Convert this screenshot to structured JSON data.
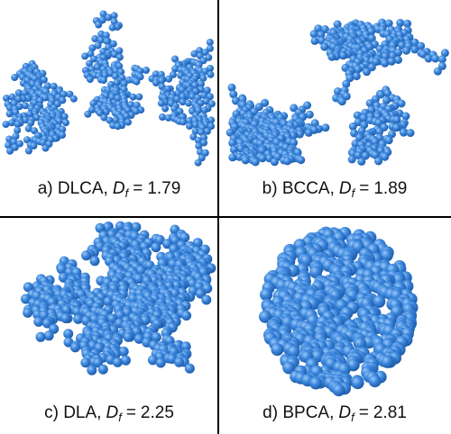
{
  "panels": [
    {
      "label": "a) DLCA,",
      "variable": "D",
      "subscript": "f",
      "relation": "=",
      "value": "1.79"
    },
    {
      "label": "b) BCCA,",
      "variable": "D",
      "subscript": "f",
      "relation": "=",
      "value": "1.89"
    },
    {
      "label": "c) DLA,",
      "variable": "D",
      "subscript": "f",
      "relation": "=",
      "value": "2.25"
    },
    {
      "label": "d) BPCA,",
      "variable": "D",
      "subscript": "f",
      "relation": "=",
      "value": "2.81"
    }
  ]
}
